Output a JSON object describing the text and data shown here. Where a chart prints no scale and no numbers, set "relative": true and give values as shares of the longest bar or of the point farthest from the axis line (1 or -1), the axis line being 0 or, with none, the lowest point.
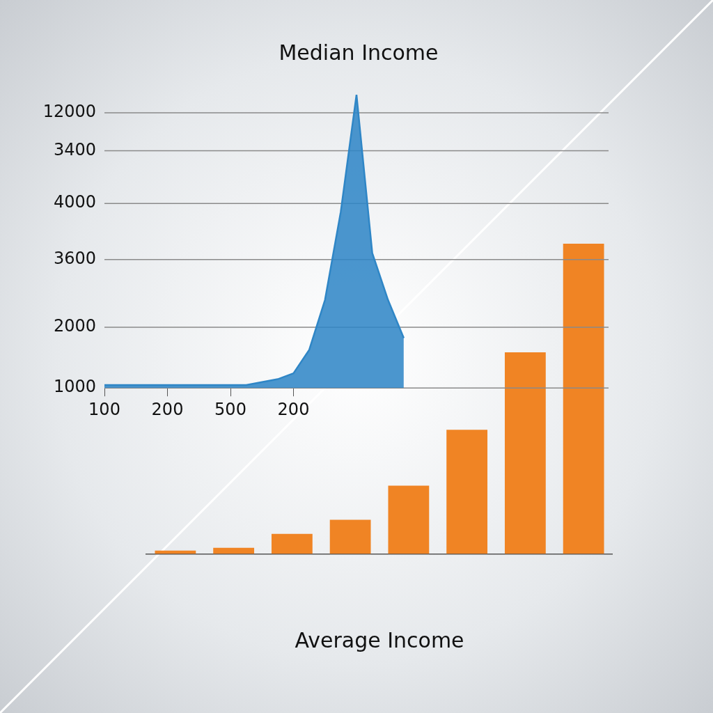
{
  "chart_data": [
    {
      "type": "area",
      "title": "Median Income",
      "relative": true,
      "categories": [
        "100",
        null,
        null,
        null,
        "200",
        null,
        null,
        null,
        "500",
        null,
        null,
        null,
        "200",
        null,
        null,
        null,
        null,
        null,
        null,
        null,
        null,
        null,
        null,
        null,
        null,
        null,
        null,
        null,
        null,
        null,
        null,
        null,
        null
      ],
      "series": [
        {
          "color": "#2f86c6",
          "values": [
            0.01,
            0.01,
            0.01,
            0.01,
            0.01,
            0.01,
            0.01,
            0.01,
            0.01,
            0.01,
            0.02,
            0.03,
            0.05,
            0.13,
            0.3,
            0.6,
            1.0,
            0.46,
            0.3,
            0.17,
            null,
            null,
            null,
            null,
            null,
            null,
            null,
            null,
            null,
            null,
            null,
            null,
            null
          ]
        }
      ],
      "ref_lines": [
        {
          "axis": "y",
          "value": 0
        },
        {
          "axis": "y",
          "value": 0.207
        },
        {
          "axis": "y",
          "value": 0.438
        },
        {
          "axis": "y",
          "value": 0.629
        },
        {
          "axis": "y",
          "value": 0.809
        },
        {
          "axis": "y",
          "value": 0.938
        }
      ],
      "annotations": [
        "1000",
        "2000",
        "3600",
        "4000",
        "3400",
        "12000"
      ]
    },
    {
      "type": "bar",
      "title": "Average Income",
      "categories": [
        null,
        null,
        null,
        null,
        null,
        null,
        null,
        null
      ],
      "values": [
        0.011,
        0.02,
        0.065,
        0.11,
        0.22,
        0.4,
        0.65,
        1
      ],
      "color": "#f08424",
      "relative": true
    }
  ]
}
